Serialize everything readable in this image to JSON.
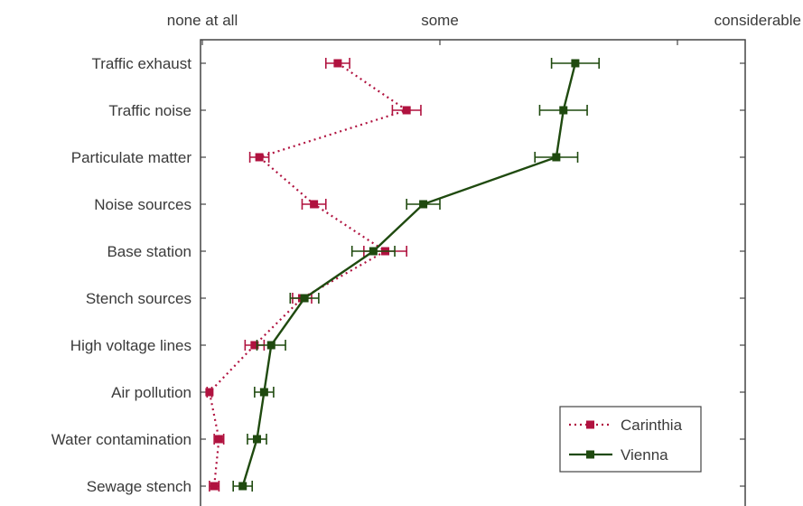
{
  "chart_data": {
    "type": "line",
    "x_axis": {
      "min": 0,
      "max": 2,
      "ticks": [
        {
          "value": 0,
          "label": "none at all"
        },
        {
          "value": 1,
          "label": "some"
        },
        {
          "value": 2,
          "label": "considerable"
        }
      ]
    },
    "categories": [
      "Traffic exhaust",
      "Traffic noise",
      "Particulate matter",
      "Noise sources",
      "Base station",
      "Stench sources",
      "High voltage lines",
      "Air pollution",
      "Water contamination",
      "Sewage stench"
    ],
    "series": [
      {
        "name": "Carinthia",
        "color": "#b0123f",
        "style": "dotted",
        "values": [
          0.57,
          0.86,
          0.24,
          0.47,
          0.77,
          0.42,
          0.22,
          0.03,
          0.07,
          0.05
        ],
        "errors": [
          0.05,
          0.06,
          0.04,
          0.05,
          0.09,
          0.04,
          0.04,
          0.01,
          0.02,
          0.02
        ]
      },
      {
        "name": "Vienna",
        "color": "#1f4a0f",
        "style": "solid",
        "values": [
          1.57,
          1.52,
          1.49,
          0.93,
          0.72,
          0.43,
          0.29,
          0.26,
          0.23,
          0.17
        ],
        "errors": [
          0.1,
          0.1,
          0.09,
          0.07,
          0.09,
          0.06,
          0.06,
          0.04,
          0.04,
          0.04
        ]
      }
    ],
    "grid": false,
    "legend_position": "bottom-right"
  }
}
